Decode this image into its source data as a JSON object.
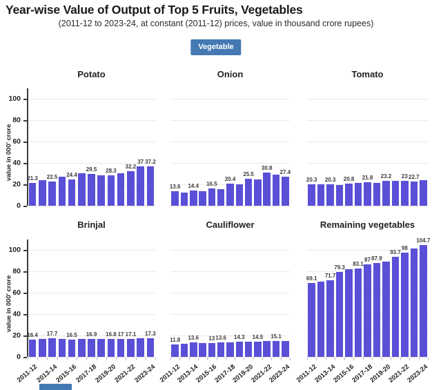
{
  "header": {
    "title": "Year-wise Value of Output of Top 5 Fruits, Vegetables",
    "subtitle": "(2011-12 to 2023-24, at constant (2011-12) prices, value in thousand crore rupees)",
    "filter_button": "Vegetable"
  },
  "colors": {
    "bar": "#5a50d7",
    "button": "#4479b4",
    "grid": "#e9e9e9",
    "axis_text": "#222222"
  },
  "axis": {
    "y_label": "value in 000' crore",
    "y_ticks": [
      0,
      20,
      40,
      60,
      80,
      100
    ],
    "ylim": [
      0,
      110
    ],
    "x_tick_labels": [
      "2011-12",
      "2013-14",
      "2015-16",
      "2017-18",
      "2019-20",
      "2021-22",
      "2023-24"
    ]
  },
  "chart_data": [
    {
      "type": "bar",
      "title": "Potato",
      "categories": [
        "2011-12",
        "2012-13",
        "2013-14",
        "2014-15",
        "2015-16",
        "2016-17",
        "2017-18",
        "2018-19",
        "2019-20",
        "2020-21",
        "2021-22",
        "2022-23",
        "2023-24"
      ],
      "values": [
        21.3,
        23.8,
        22.5,
        26.9,
        24.4,
        30.1,
        29.5,
        28.6,
        28.3,
        30.6,
        32.2,
        37,
        37.2
      ],
      "bar_labels": {
        "0": "21.3",
        "2": "22.5",
        "4": "24.4",
        "6": "29.5",
        "8": "28.3",
        "10": "32.2",
        "11": "37",
        "12": "37.2"
      },
      "ylabel": "value in 000' crore",
      "ylim": [
        0,
        110
      ],
      "grid": true
    },
    {
      "type": "bar",
      "title": "Onion",
      "categories": [
        "2011-12",
        "2012-13",
        "2013-14",
        "2014-15",
        "2015-16",
        "2016-17",
        "2017-18",
        "2018-19",
        "2019-20",
        "2020-21",
        "2021-22",
        "2022-23",
        "2023-24"
      ],
      "values": [
        13.6,
        12.5,
        14.4,
        13.9,
        16.5,
        15.8,
        20.4,
        19.8,
        25.5,
        24.6,
        30.8,
        29.2,
        27.4
      ],
      "bar_labels": {
        "0": "13.6",
        "2": "14.4",
        "4": "16.5",
        "6": "20.4",
        "8": "25.5",
        "10": "30.8",
        "12": "27.4"
      },
      "ylabel": "value in 000' crore",
      "ylim": [
        0,
        110
      ],
      "grid": true
    },
    {
      "type": "bar",
      "title": "Tomato",
      "categories": [
        "2011-12",
        "2012-13",
        "2013-14",
        "2014-15",
        "2015-16",
        "2016-17",
        "2017-18",
        "2018-19",
        "2019-20",
        "2020-21",
        "2021-22",
        "2022-23",
        "2023-24"
      ],
      "values": [
        20.3,
        20.1,
        20.3,
        19.2,
        20.8,
        21.3,
        21.8,
        21.4,
        23.2,
        23.3,
        23,
        22.7,
        23.9
      ],
      "bar_labels": {
        "0": "20.3",
        "2": "20.3",
        "4": "20.8",
        "6": "21.8",
        "8": "23.2",
        "10": "23",
        "11": "22.7"
      },
      "ylabel": "value in 000' crore",
      "ylim": [
        0,
        110
      ],
      "grid": true
    },
    {
      "type": "bar",
      "title": "Brinjal",
      "categories": [
        "2011-12",
        "2012-13",
        "2013-14",
        "2014-15",
        "2015-16",
        "2016-17",
        "2017-18",
        "2018-19",
        "2019-20",
        "2020-21",
        "2021-22",
        "2022-23",
        "2023-24"
      ],
      "values": [
        16.4,
        17.1,
        17.7,
        16.6,
        16.5,
        16.7,
        16.9,
        16.6,
        16.8,
        17,
        17.1,
        17.2,
        17.3
      ],
      "bar_labels": {
        "0": "16.4",
        "2": "17.7",
        "4": "16.5",
        "6": "16.9",
        "8": "16.8",
        "9": "17",
        "10": "17.1",
        "12": "17.3"
      },
      "ylabel": "value in 000' crore",
      "ylim": [
        0,
        110
      ],
      "grid": true
    },
    {
      "type": "bar",
      "title": "Cauliflower",
      "categories": [
        "2011-12",
        "2012-13",
        "2013-14",
        "2014-15",
        "2015-16",
        "2016-17",
        "2017-18",
        "2018-19",
        "2019-20",
        "2020-21",
        "2021-22",
        "2022-23",
        "2023-24"
      ],
      "values": [
        11.8,
        12.5,
        13.6,
        12.8,
        13,
        13.6,
        13.9,
        14.3,
        14.2,
        14.5,
        14.6,
        15.1,
        15.2
      ],
      "bar_labels": {
        "0": "11.8",
        "2": "13.6",
        "4": "13",
        "5": "13.6",
        "7": "14.3",
        "9": "14.5",
        "11": "15.1"
      },
      "ylabel": "value in 000' crore",
      "ylim": [
        0,
        110
      ],
      "grid": true
    },
    {
      "type": "bar",
      "title": "Remaining vegetables",
      "categories": [
        "2011-12",
        "2012-13",
        "2013-14",
        "2014-15",
        "2015-16",
        "2016-17",
        "2017-18",
        "2018-19",
        "2019-20",
        "2020-21",
        "2021-22",
        "2022-23",
        "2023-24"
      ],
      "values": [
        69.1,
        70.4,
        71.7,
        79.3,
        82.3,
        83.1,
        87,
        87.9,
        89.5,
        93.7,
        98,
        101.3,
        104.7
      ],
      "bar_labels": {
        "0": "69.1",
        "2": "71.7",
        "3": "79.3",
        "5": "83.1",
        "6": "87",
        "7": "87.9",
        "9": "93.7",
        "10": "98",
        "12": "104.7"
      },
      "ylabel": "value in 000' crore",
      "ylim": [
        0,
        110
      ],
      "grid": true
    }
  ]
}
